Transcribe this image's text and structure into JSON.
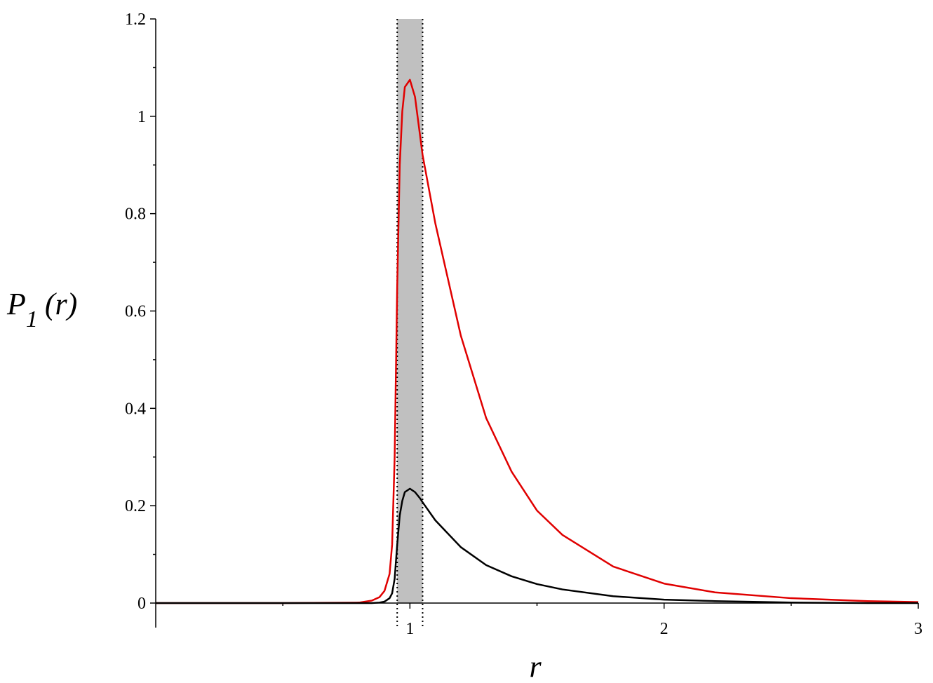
{
  "chart_data": {
    "type": "line",
    "xlabel": "r",
    "ylabel_main": "P",
    "ylabel_sub": "1",
    "ylabel_tail": "(r)",
    "x": [
      0,
      0.5,
      0.8,
      0.85,
      0.88,
      0.9,
      0.92,
      0.93,
      0.94,
      0.95,
      0.96,
      0.97,
      0.98,
      1.0,
      1.02,
      1.04,
      1.05,
      1.1,
      1.2,
      1.3,
      1.4,
      1.5,
      1.6,
      1.8,
      2.0,
      2.2,
      2.5,
      2.8,
      3.0
    ],
    "series": [
      {
        "color": "#e00000",
        "values": [
          0,
          0,
          0.001,
          0.005,
          0.012,
          0.025,
          0.06,
          0.12,
          0.3,
          0.65,
          0.9,
          1.01,
          1.06,
          1.075,
          1.04,
          0.96,
          0.92,
          0.78,
          0.55,
          0.38,
          0.27,
          0.19,
          0.14,
          0.075,
          0.04,
          0.022,
          0.01,
          0.004,
          0.002
        ]
      },
      {
        "color": "#000000",
        "values": [
          0,
          0,
          0,
          0,
          0.001,
          0.003,
          0.01,
          0.02,
          0.05,
          0.12,
          0.18,
          0.21,
          0.228,
          0.235,
          0.228,
          0.215,
          0.207,
          0.17,
          0.115,
          0.078,
          0.055,
          0.039,
          0.028,
          0.014,
          0.007,
          0.004,
          0.001,
          0,
          0
        ]
      }
    ],
    "band": [
      0.95,
      1.05
    ],
    "band_color": "#c0c0c0",
    "xlim": [
      0,
      3
    ],
    "ylim": [
      0,
      1.2
    ],
    "xticks": [
      1,
      2,
      3
    ],
    "xminor": [
      0.5,
      1.5,
      2.5
    ],
    "yticks": [
      0,
      0.2,
      0.4,
      0.6,
      0.8,
      1,
      1.2
    ],
    "yminor": [
      0.1,
      0.3,
      0.5,
      0.7,
      0.9,
      1.1
    ],
    "grid": false
  }
}
